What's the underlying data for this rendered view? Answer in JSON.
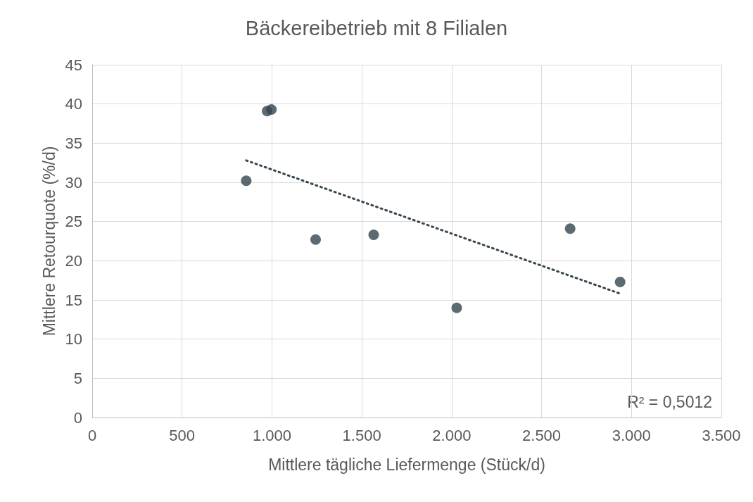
{
  "chart_data": {
    "type": "scatter",
    "title": "Bäckereibetrieb mit 8 Filialen",
    "xlabel": "Mittlere tägliche Liefermenge (Stück/d)",
    "ylabel": "Mittlere Retourquote (%/d)",
    "x": [
      857,
      973,
      997,
      1243,
      1566,
      2028,
      2659,
      2937
    ],
    "series": [
      {
        "color": "#36454f",
        "values": [
          30.2,
          39.1,
          39.3,
          22.7,
          23.3,
          14.0,
          24.1,
          17.3
        ],
        "marker": "circle"
      },
      {
        "type": "line",
        "color": "#36454f",
        "x": [
          857,
          2937
        ],
        "values": [
          32.8,
          15.8
        ],
        "line_style": "dotted",
        "marker": "none"
      }
    ],
    "annotations": [
      "R² = 0,5012"
    ],
    "xlim": [
      0,
      3500
    ],
    "xticks": [
      0,
      {
        "value": 500,
        "label": "500"
      },
      {
        "value": 1000,
        "label": "1.000"
      },
      {
        "value": 1500,
        "label": "1.500"
      },
      {
        "value": 2000,
        "label": "2.000"
      },
      {
        "value": 2500,
        "label": "2.500"
      },
      {
        "value": 3000,
        "label": "3.000"
      },
      {
        "value": 3500,
        "label": "3.500"
      }
    ],
    "ylim": [
      0,
      45
    ],
    "yticks": [
      0,
      5,
      10,
      15,
      20,
      25,
      30,
      35,
      40,
      45
    ],
    "grid": true
  }
}
